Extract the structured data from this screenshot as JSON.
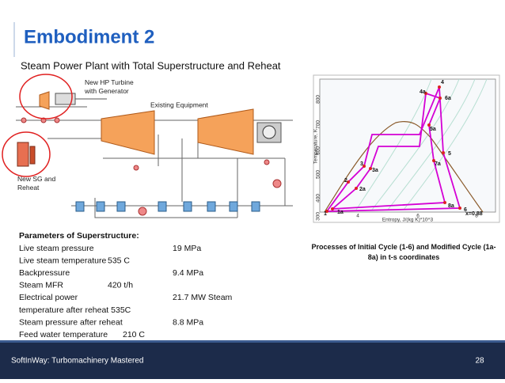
{
  "header": {
    "title": "Embodiment 2",
    "subtitle": "Steam Power Plant with Total Superstructure and Reheat"
  },
  "schematic": {
    "label_hp_turbine": "New HP Turbine with Generator",
    "label_existing": "Existing Equipment",
    "label_sg": "New SG and Reheat"
  },
  "parameters": {
    "heading": "Parameters of Superstructure:",
    "rows": [
      {
        "label": "Live steam pressure",
        "value": "19 MPa"
      },
      {
        "label": "Live steam temperature",
        "value_mid": "535 C"
      },
      {
        "label": "Backpressure",
        "value": "9.4 MPa"
      },
      {
        "label": "Steam MFR",
        "value_mid": "420 t/h"
      },
      {
        "label": "Electrical power",
        "value": "21.7 MW Steam"
      },
      {
        "label": "temperature after reheat 535C"
      },
      {
        "label": "Steam pressure after reheat",
        "value": "8.8 MPa"
      },
      {
        "label": "Feed water temperature",
        "value_mid": "210  C"
      }
    ]
  },
  "ts_diagram": {
    "x_label": "Entropy, J/(kg K)*10^3",
    "y_label": "Temperature, K",
    "xticks": [
      "4",
      "6",
      "8"
    ],
    "yticks": [
      "300",
      "400",
      "500",
      "600",
      "700",
      "800"
    ],
    "points": [
      "1",
      "1a",
      "2",
      "2a",
      "3",
      "3a",
      "4",
      "4a",
      "6a",
      "5a",
      "5",
      "7a",
      "6",
      "8a",
      "x=0.88"
    ],
    "caption": "Processes of Initial Cycle (1-6) and Modified Cycle (1a-8a) in t-s coordinates"
  },
  "footer": {
    "company": "SoftInWay: Turbomachinery Mastered",
    "page": "28"
  }
}
